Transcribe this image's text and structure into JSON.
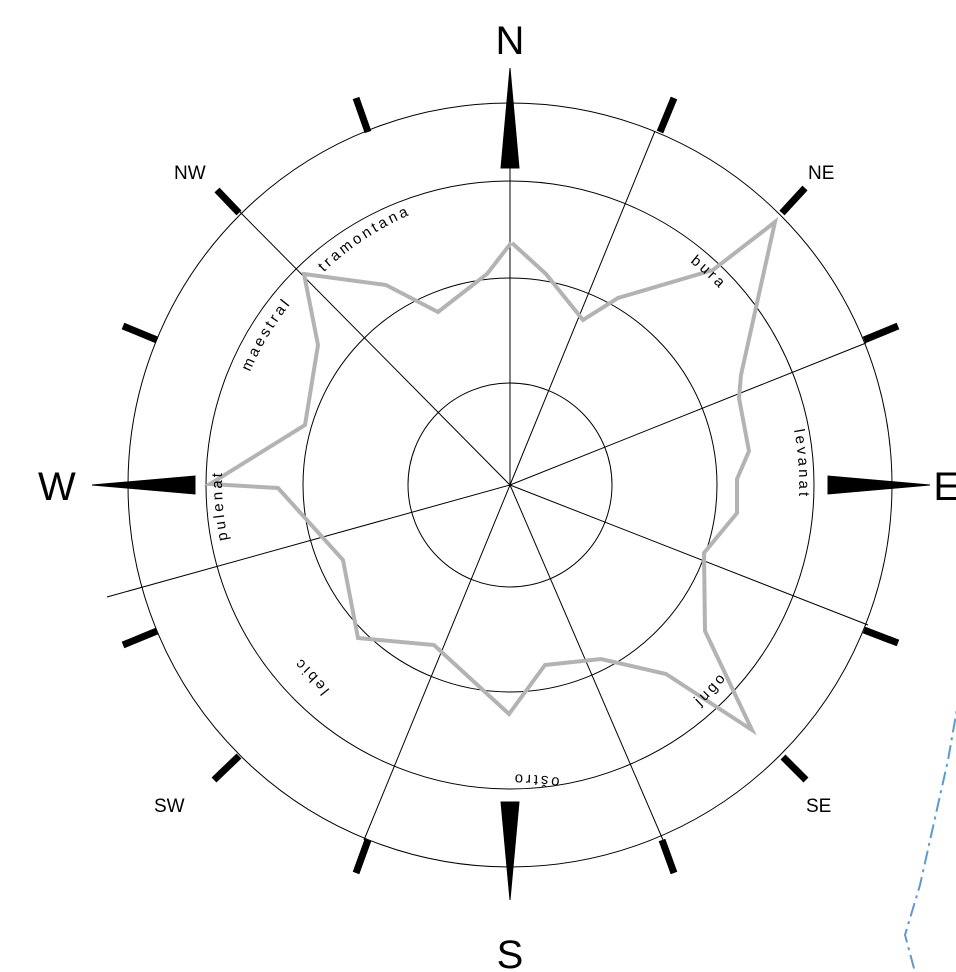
{
  "cardinals": {
    "n": "N",
    "e": "E",
    "s": "S",
    "w": "W"
  },
  "intercardinals": {
    "ne": "NE",
    "se": "SE",
    "sw": "SW",
    "nw": "NW"
  },
  "winds": [
    {
      "key": "tramontana",
      "label": "tramontana"
    },
    {
      "key": "bura",
      "label": "bura"
    },
    {
      "key": "levanat",
      "label": "levanat"
    },
    {
      "key": "jugo",
      "label": "jugo"
    },
    {
      "key": "ostro",
      "label": "oštro"
    },
    {
      "key": "lebic",
      "label": "lebic"
    },
    {
      "key": "pulenat",
      "label": "pulenat"
    },
    {
      "key": "maestral",
      "label": "maestral"
    }
  ],
  "colors": {
    "lines": "#000000",
    "profile": "#b3b3b3",
    "dashed": "#5b9bd5"
  }
}
